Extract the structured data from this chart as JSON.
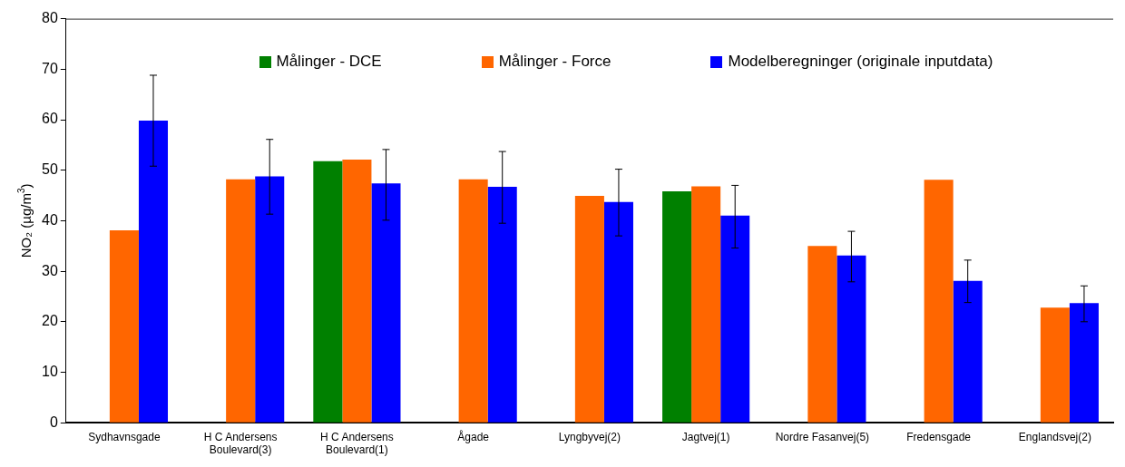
{
  "chart_data": {
    "type": "bar",
    "ylabel": "NO₂ (µg/m$^{3}$)",
    "categories": [
      "Sydhavnsgade",
      "H C Andersens Boulevard(3)",
      "H C Andersens Boulevard(1)",
      "Ågade",
      "Lyngbyvej(2)",
      "Jagtvej(1)",
      "Nordre Fasanvej(5)",
      "Fredensgade",
      "Englandsvej(2)"
    ],
    "series": [
      {
        "name": "Målinger - DCE",
        "color": "#008000",
        "values": [
          null,
          null,
          51.8,
          null,
          null,
          45.8,
          null,
          null,
          null
        ]
      },
      {
        "name": "Målinger - Force",
        "color": "#ff6600",
        "values": [
          38.1,
          48.2,
          52.1,
          48.2,
          44.9,
          46.8,
          35.0,
          48.1,
          22.8
        ]
      },
      {
        "name": "Modelberegninger (originale inputdata)",
        "color": "#0000ff",
        "values": [
          59.8,
          48.8,
          47.4,
          46.7,
          43.7,
          41.0,
          33.1,
          28.1,
          23.7
        ],
        "errors": [
          [
            50.8,
            68.8
          ],
          [
            41.3,
            56.1
          ],
          [
            40.1,
            54.1
          ],
          [
            39.5,
            53.7
          ],
          [
            37.0,
            50.2
          ],
          [
            34.6,
            47.0
          ],
          [
            27.9,
            37.9
          ],
          [
            23.8,
            32.2
          ],
          [
            20.0,
            27.1
          ]
        ]
      }
    ],
    "ylim": [
      0,
      80
    ],
    "yticks": [
      0,
      10,
      20,
      30,
      40,
      50,
      60,
      70,
      80
    ],
    "grid": false,
    "legend": "top"
  }
}
